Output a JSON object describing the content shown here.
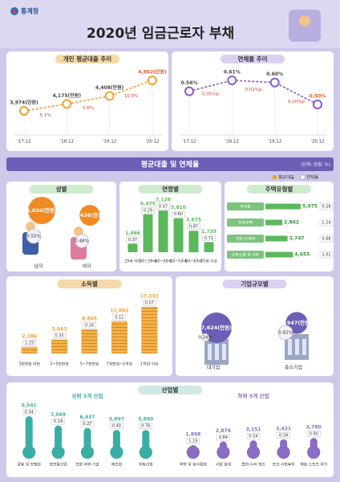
{
  "header": {
    "logo": "통계청",
    "title": "2020년 임금근로자 부채"
  },
  "banner": {
    "title": "평균대출 및 연체율",
    "unit": "(단위: 만원, %)",
    "legend": [
      "평균대출",
      "연체율"
    ]
  },
  "chart_data": [
    {
      "type": "line",
      "title": "개인 평균대출 추이",
      "categories": [
        "'17.12",
        "'18.12",
        "'19.12",
        "'20.12"
      ],
      "values": [
        3974,
        4175,
        4408,
        4862
      ],
      "value_labels": [
        "3,974(만원)",
        "4,175(만원)",
        "4,408(만원)",
        "4,862(만원)"
      ],
      "annotations": [
        "5.1%",
        "5.6%",
        "10.3%"
      ],
      "color": "#f0a030"
    },
    {
      "type": "line",
      "title": "연체율 추이",
      "categories": [
        "'17.12",
        "'18.12",
        "'19.12",
        "'20.12"
      ],
      "values": [
        0.56,
        0.61,
        0.6,
        0.5
      ],
      "value_labels": [
        "0.56%",
        "0.61%",
        "0.60%",
        "0.50%"
      ],
      "annotations": [
        "0.05%p",
        "0.01%p",
        "0.10%p"
      ],
      "color": "#8a5cc4"
    },
    {
      "type": "bubble",
      "title": "성별",
      "categories": [
        "남자",
        "여자"
      ],
      "series": [
        {
          "values": [
            6026,
            3438
          ],
          "value_labels": [
            "6,026(만원)",
            "3,438(만원)"
          ],
          "color": "#f08a24"
        },
        {
          "values": [
            0.55,
            0.48
          ],
          "value_labels": [
            "0.55%",
            "0.48%"
          ],
          "color": "#f08a24"
        }
      ]
    },
    {
      "type": "bar",
      "title": "연령별",
      "categories": [
        "29세 이하",
        "30~39세",
        "40~49세",
        "50~59세",
        "60~69세",
        "70세 이상"
      ],
      "series": [
        {
          "values": [
            1466,
            6475,
            7128,
            5810,
            3675,
            1739
          ],
          "value_labels": [
            "1,466",
            "6,475",
            "7,128",
            "5,810",
            "3,675",
            "1,739"
          ],
          "color": "#5bb85d"
        },
        {
          "values": [
            0.37,
            0.29,
            0.47,
            0.6,
            0.87,
            0.72
          ],
          "value_labels": [
            "0.37",
            "0.29",
            "0.47",
            "0.60",
            "0.87",
            "0.72"
          ]
        }
      ]
    },
    {
      "type": "hbar",
      "title": "주택유형별",
      "categories": [
        "아파트",
        "단독주택",
        "연립·다세대",
        "오피스텔 및 기타"
      ],
      "series": [
        {
          "values": [
            5975,
            2862,
            3747,
            4655
          ],
          "value_labels": [
            "5,975",
            "2,862",
            "3,747",
            "4,655"
          ],
          "color": "#5bb85d"
        },
        {
          "values": [
            0.28,
            1.24,
            0.68,
            1.01
          ],
          "value_labels": [
            "0.28",
            "1.24",
            "0.68",
            "1.01"
          ]
        }
      ]
    },
    {
      "type": "bar",
      "title": "소득별",
      "categories": [
        "3천만원 미만",
        "3~5천만원",
        "5~7천만원",
        "7천만원~1억원",
        "1억원 이상"
      ],
      "series": [
        {
          "values": [
            2386,
            5063,
            8845,
            11862,
            17131
          ],
          "value_labels": [
            "2,386",
            "5,063",
            "8,845",
            "11,862",
            "17,131"
          ],
          "color": "#f0a030"
        },
        {
          "values": [
            1.25,
            0.35,
            0.16,
            0.11,
            0.07
          ],
          "value_labels": [
            "1.25",
            "0.35",
            "0.16",
            "0.11",
            "0.07"
          ]
        }
      ]
    },
    {
      "type": "bubble",
      "title": "기업규모별",
      "categories": [
        "대기업",
        "중소기업"
      ],
      "series": [
        {
          "values": [
            7624,
            3947
          ],
          "value_labels": [
            "7,624(만원)",
            "3,947(만원)"
          ],
          "color": "#6b5fb5"
        },
        {
          "values": [
            0.24,
            0.82
          ],
          "value_labels": [
            "0.24%",
            "0.82%"
          ],
          "color": "#6b5fb5"
        }
      ]
    },
    {
      "type": "bar",
      "title": "산업별",
      "subtitle": "상위 5개 산업",
      "categories": [
        "금융 및 보험업",
        "정보통신업",
        "전문·과학·기술",
        "제조업",
        "부동산업"
      ],
      "series": [
        {
          "values": [
            9541,
            7069,
            6437,
            5897,
            5890
          ],
          "value_labels": [
            "9,541",
            "7,069",
            "6,437",
            "5,897",
            "5,890"
          ],
          "color": "#3aaea5"
        },
        {
          "values": [
            0.34,
            0.19,
            0.27,
            0.4,
            0.76
          ],
          "value_labels": [
            "0.34",
            "0.19",
            "0.27",
            "0.40",
            "0.76"
          ]
        }
      ]
    },
    {
      "type": "bar",
      "subtitle": "하위 5개 산업",
      "categories": [
        "숙박 및 음식점업",
        "사업 임대",
        "협회·수리·개인",
        "보건·사회복지",
        "예술·스포츠·여가"
      ],
      "series": [
        {
          "values": [
            1898,
            2876,
            3151,
            3421,
            3780
          ],
          "value_labels": [
            "1,898",
            "2,876",
            "3,151",
            "3,421",
            "3,780"
          ],
          "color": "#8a6cc4"
        },
        {
          "values": [
            1.19,
            0.84,
            0.54,
            0.39,
            0.9
          ],
          "value_labels": [
            "1.19",
            "0.84",
            "0.54",
            "0.39",
            "0.90"
          ]
        }
      ]
    }
  ]
}
